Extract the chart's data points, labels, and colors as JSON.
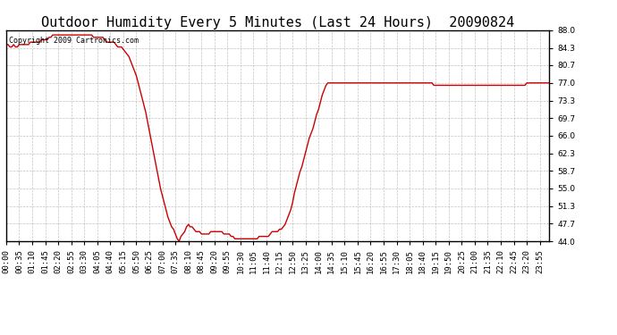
{
  "title": "Outdoor Humidity Every 5 Minutes (Last 24 Hours)  20090824",
  "copyright_text": "Copyright 2009 Cartronics.com",
  "line_color": "#cc0000",
  "background_color": "#ffffff",
  "grid_color": "#aaaaaa",
  "ylim": [
    44.0,
    88.0
  ],
  "yticks": [
    44.0,
    47.7,
    51.3,
    55.0,
    58.7,
    62.3,
    66.0,
    69.7,
    73.3,
    77.0,
    80.7,
    84.3,
    88.0
  ],
  "title_fontsize": 11,
  "tick_fontsize": 6.5,
  "copyright_fontsize": 6,
  "line_width": 1.0,
  "humidity_data": [
    85.0,
    85.0,
    84.5,
    84.5,
    85.0,
    84.5,
    84.5,
    85.0,
    85.0,
    85.0,
    85.0,
    85.0,
    85.0,
    85.5,
    85.5,
    85.5,
    85.5,
    85.5,
    85.5,
    86.0,
    86.0,
    86.0,
    86.0,
    86.5,
    86.5,
    87.0,
    87.0,
    87.0,
    87.0,
    87.0,
    87.0,
    87.0,
    87.0,
    87.0,
    87.0,
    87.0,
    87.0,
    87.0,
    87.0,
    87.0,
    87.0,
    87.0,
    87.0,
    87.0,
    87.0,
    87.0,
    87.0,
    86.5,
    86.5,
    86.5,
    86.5,
    86.5,
    86.5,
    86.0,
    85.5,
    85.5,
    85.5,
    85.5,
    85.5,
    85.0,
    84.5,
    84.5,
    84.5,
    84.0,
    83.5,
    83.0,
    82.5,
    81.5,
    80.5,
    79.5,
    78.5,
    77.0,
    75.5,
    74.0,
    72.5,
    71.0,
    69.0,
    67.0,
    65.0,
    63.0,
    61.0,
    59.0,
    57.0,
    55.0,
    53.5,
    52.0,
    50.5,
    49.0,
    48.0,
    47.0,
    46.5,
    45.5,
    44.5,
    44.0,
    45.0,
    45.5,
    46.0,
    47.0,
    47.5,
    47.0,
    47.0,
    46.5,
    46.0,
    46.0,
    46.0,
    45.5,
    45.5,
    45.5,
    45.5,
    45.5,
    46.0,
    46.0,
    46.0,
    46.0,
    46.0,
    46.0,
    46.0,
    45.5,
    45.5,
    45.5,
    45.5,
    45.0,
    45.0,
    44.5,
    44.5,
    44.5,
    44.5,
    44.5,
    44.5,
    44.5,
    44.5,
    44.5,
    44.5,
    44.5,
    44.5,
    44.5,
    45.0,
    45.0,
    45.0,
    45.0,
    45.0,
    45.0,
    45.5,
    46.0,
    46.0,
    46.0,
    46.0,
    46.5,
    46.5,
    47.0,
    47.5,
    48.5,
    49.5,
    50.5,
    52.0,
    54.0,
    55.5,
    57.0,
    58.5,
    59.5,
    61.0,
    62.5,
    64.0,
    65.5,
    66.5,
    67.5,
    69.0,
    70.5,
    71.5,
    73.0,
    74.5,
    75.5,
    76.5,
    77.0,
    77.0,
    77.0,
    77.0,
    77.0,
    77.0,
    77.0,
    77.0,
    77.0,
    77.0,
    77.0,
    77.0,
    77.0,
    77.0,
    77.0,
    77.0,
    77.0,
    77.0,
    77.0,
    77.0,
    77.0,
    77.0,
    77.0,
    77.0,
    77.0,
    77.0,
    77.0,
    77.0,
    77.0,
    77.0,
    77.0,
    77.0,
    77.0,
    77.0,
    77.0,
    77.0,
    77.0,
    77.0,
    77.0,
    77.0,
    77.0,
    77.0,
    77.0,
    77.0,
    77.0,
    77.0,
    77.0,
    77.0,
    77.0,
    77.0,
    77.0,
    77.0,
    77.0,
    77.0,
    77.0,
    77.0,
    77.0,
    76.5,
    76.5,
    76.5,
    76.5,
    76.5,
    76.5,
    76.5,
    76.5,
    76.5,
    76.5,
    76.5,
    76.5,
    76.5,
    76.5,
    76.5,
    76.5,
    76.5,
    76.5,
    76.5,
    76.5,
    76.5,
    76.5,
    76.5,
    76.5,
    76.5,
    76.5,
    76.5,
    76.5,
    76.5,
    76.5,
    76.5,
    76.5,
    76.5,
    76.5,
    76.5,
    76.5,
    76.5,
    76.5,
    76.5,
    76.5,
    76.5,
    76.5,
    76.5,
    76.5,
    76.5,
    76.5,
    76.5,
    76.5,
    76.5,
    76.5,
    77.0,
    77.0,
    77.0,
    77.0,
    77.0,
    77.0,
    77.0,
    77.0,
    77.0,
    77.0,
    77.0,
    77.0,
    77.0
  ]
}
